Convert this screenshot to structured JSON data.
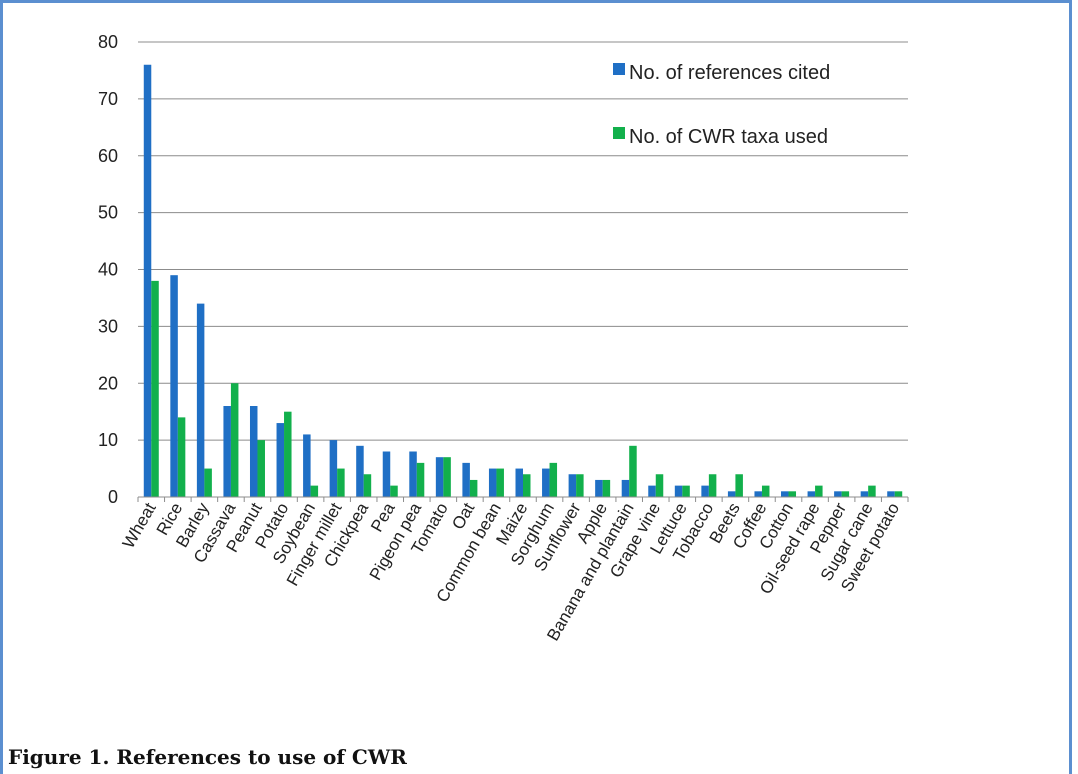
{
  "caption": "Figure 1. References to use of CWR",
  "chart_data": {
    "type": "bar",
    "title": "",
    "xlabel": "",
    "ylabel": "",
    "ylim": [
      0,
      80
    ],
    "yticks": [
      0,
      10,
      20,
      30,
      40,
      50,
      60,
      70,
      80
    ],
    "grid": true,
    "legend_position": "top-right",
    "categories": [
      "Wheat",
      "Rice",
      "Barley",
      "Cassava",
      "Peanut",
      "Potato",
      "Soybean",
      "Finger millet",
      "Chickpea",
      "Pea",
      "Pigeon pea",
      "Tomato",
      "Oat",
      "Common bean",
      "Maize",
      "Sorghum",
      "Sunflower",
      "Apple",
      "Banana and plantain",
      "Grape vine",
      "Lettuce",
      "Tobacco",
      "Beets",
      "Coffee",
      "Cotton",
      "Oil-seed rape",
      "Pepper",
      "Sugar cane",
      "Sweet potato"
    ],
    "series": [
      {
        "name": "No. of references cited",
        "color": "#1f6fc5",
        "values": [
          76,
          39,
          34,
          16,
          16,
          13,
          11,
          10,
          9,
          8,
          8,
          7,
          6,
          5,
          5,
          5,
          4,
          3,
          3,
          2,
          2,
          2,
          1,
          1,
          1,
          1,
          1,
          1,
          1
        ]
      },
      {
        "name": "No. of CWR taxa used",
        "color": "#12b04c",
        "values": [
          38,
          14,
          5,
          20,
          10,
          15,
          2,
          5,
          4,
          2,
          6,
          7,
          3,
          5,
          4,
          6,
          4,
          3,
          9,
          4,
          2,
          4,
          4,
          2,
          1,
          2,
          1,
          2,
          1
        ]
      }
    ]
  }
}
